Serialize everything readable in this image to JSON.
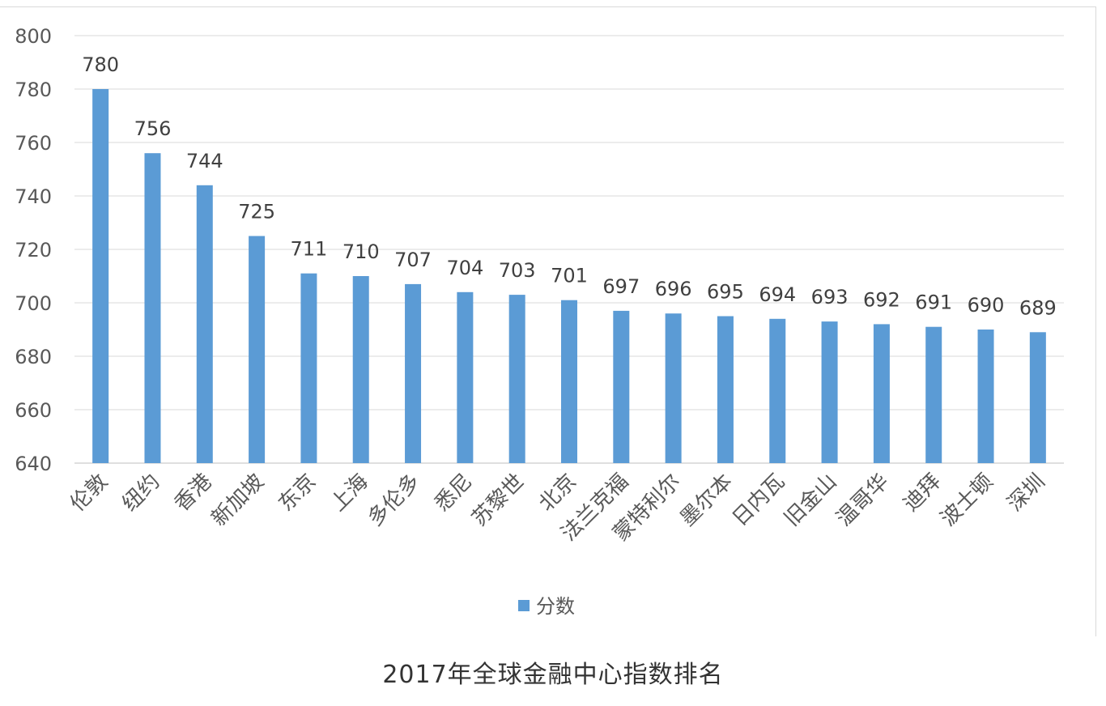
{
  "chart_data": {
    "type": "bar",
    "categories": [
      "伦敦",
      "纽约",
      "香港",
      "新加坡",
      "东京",
      "上海",
      "多伦多",
      "悉尼",
      "苏黎世",
      "北京",
      "法兰克福",
      "蒙特利尔",
      "墨尔本",
      "日内瓦",
      "旧金山",
      "温哥华",
      "迪拜",
      "波士顿",
      "深圳"
    ],
    "series": [
      {
        "name": "分数",
        "values": [
          780,
          756,
          744,
          725,
          711,
          710,
          707,
          704,
          703,
          701,
          697,
          696,
          695,
          694,
          693,
          692,
          691,
          690,
          689
        ],
        "color": "#5b9bd5"
      }
    ],
    "y_ticks": [
      "800",
      "780",
      "760",
      "740",
      "720",
      "700",
      "680",
      "660",
      "640"
    ],
    "ylim": [
      640,
      800
    ],
    "grid": true,
    "legend_position": "bottom",
    "data_labels": true
  },
  "caption": "2017年全球金融中心指数排名"
}
